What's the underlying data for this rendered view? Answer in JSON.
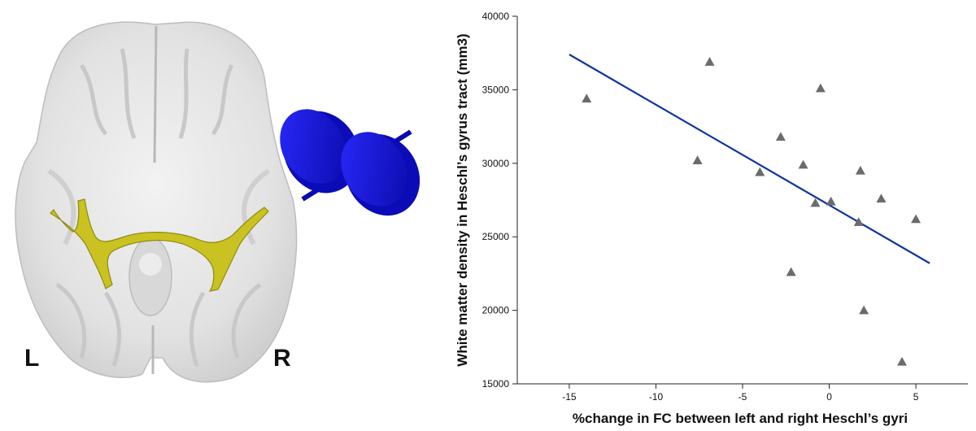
{
  "brain_panel": {
    "left_label": "L",
    "right_label": "R",
    "colors": {
      "tract": "#c9c221",
      "cylinder": "#1010d8",
      "tissue": "#e6e6e6"
    }
  },
  "chart_data": {
    "type": "scatter",
    "title": "",
    "xlabel": "%change in FC between left and right Heschl’s gyri",
    "ylabel": "White matter density in Heschl’s gyrus tract (mm3)",
    "xlim": [
      -18,
      8
    ],
    "ylim": [
      15000,
      40000
    ],
    "xticks": [
      -15,
      -10,
      -5,
      0,
      5
    ],
    "yticks": [
      15000,
      20000,
      25000,
      30000,
      35000,
      40000
    ],
    "marker": "triangle",
    "marker_color": "#6b6b6b",
    "line_color": "#1035a0",
    "points": [
      {
        "x": -14.0,
        "y": 34400
      },
      {
        "x": -6.9,
        "y": 36900
      },
      {
        "x": -7.6,
        "y": 30200
      },
      {
        "x": -4.0,
        "y": 29400
      },
      {
        "x": -2.8,
        "y": 31800
      },
      {
        "x": -1.5,
        "y": 29900
      },
      {
        "x": -0.5,
        "y": 35100
      },
      {
        "x": -0.8,
        "y": 27300
      },
      {
        "x": 0.1,
        "y": 27400
      },
      {
        "x": -2.2,
        "y": 22600
      },
      {
        "x": 1.7,
        "y": 26000
      },
      {
        "x": 1.8,
        "y": 29500
      },
      {
        "x": 3.0,
        "y": 27600
      },
      {
        "x": 5.0,
        "y": 26200
      },
      {
        "x": 2.0,
        "y": 20000
      },
      {
        "x": 4.2,
        "y": 16500
      }
    ],
    "fit_line": {
      "x": [
        -15,
        5.8
      ],
      "y": [
        37400,
        23200
      ]
    }
  }
}
